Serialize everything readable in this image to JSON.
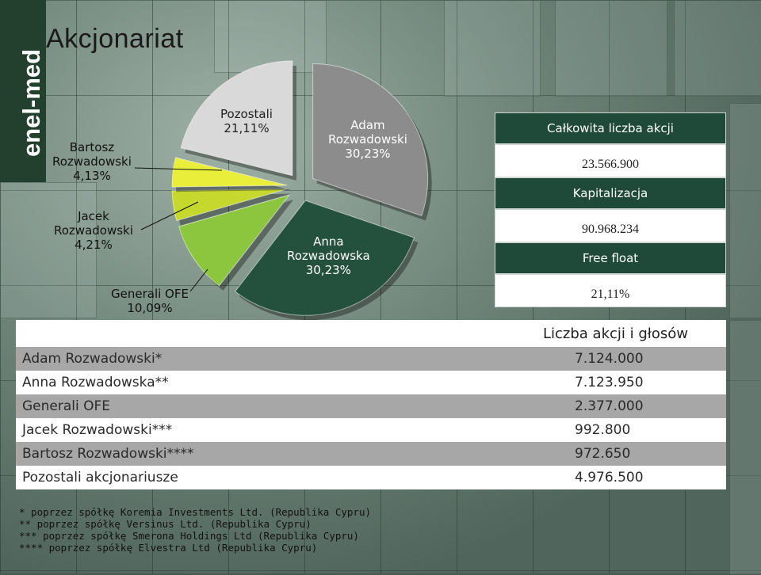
{
  "title": "Akcjonariat",
  "brand": "enel-med",
  "chart_data": {
    "type": "pie",
    "slices": [
      {
        "name": "Adam Rozwadowski",
        "value": 30.23,
        "label": "30,23%",
        "color": "#8c8c8c"
      },
      {
        "name": "Anna Rozwadowska",
        "value": 30.23,
        "label": "30,23%",
        "color": "#24503e"
      },
      {
        "name": "Generali OFE",
        "value": 10.09,
        "label": "10,09%",
        "color": "#8cc63f"
      },
      {
        "name": "Jacek Rozwadowski",
        "value": 4.21,
        "label": "4,21%",
        "color": "#c6d82e"
      },
      {
        "name": "Bartosz Rozwadowski",
        "value": 4.13,
        "label": "4,13%",
        "color": "#e8ee3a"
      },
      {
        "name": "Pozostali",
        "value": 21.11,
        "label": "21,11%",
        "color": "#d9d9d9"
      }
    ],
    "labels": {
      "adam": [
        "Adam",
        "Rozwadowski",
        "30,23%"
      ],
      "anna": [
        "Anna",
        "Rozwadowska",
        "30,23%"
      ],
      "generali": [
        "Generali OFE",
        "10,09%"
      ],
      "jacek": [
        "Jacek",
        "Rozwadowski",
        "4,21%"
      ],
      "bartosz": [
        "Bartosz",
        "Rozwadowski",
        "4,13%"
      ],
      "pozostali": [
        "Pozostali",
        "21,11%"
      ]
    }
  },
  "info": {
    "total_label": "Całkowita liczba akcji",
    "total_value": "23.566.900",
    "cap_label": "Kapitalizacja",
    "cap_value": "90.968.234",
    "float_label": "Free float",
    "float_value": "21,11%"
  },
  "table": {
    "header": "Liczba akcji i głosów",
    "rows": [
      {
        "name": "Adam Rozwadowski*",
        "value": "7.124.000"
      },
      {
        "name": "Anna Rozwadowska**",
        "value": "7.123.950"
      },
      {
        "name": "Generali OFE",
        "value": "2.377.000"
      },
      {
        "name": "Jacek Rozwadowski***",
        "value": "992.800"
      },
      {
        "name": "Bartosz Rozwadowski****",
        "value": "972.650"
      },
      {
        "name": "Pozostali akcjonariusze",
        "value": "4.976.500"
      }
    ]
  },
  "notes": [
    "* poprzez spółkę Koremia Investments Ltd. (Republika Cypru)",
    "** poprzez spółkę Versinus Ltd. (Republika Cypru)",
    "*** poprzez spółkę Smerona Holdings Ltd (Republika Cypru)",
    "**** poprzez spółkę Elvestra Ltd (Republika Cypru)"
  ]
}
